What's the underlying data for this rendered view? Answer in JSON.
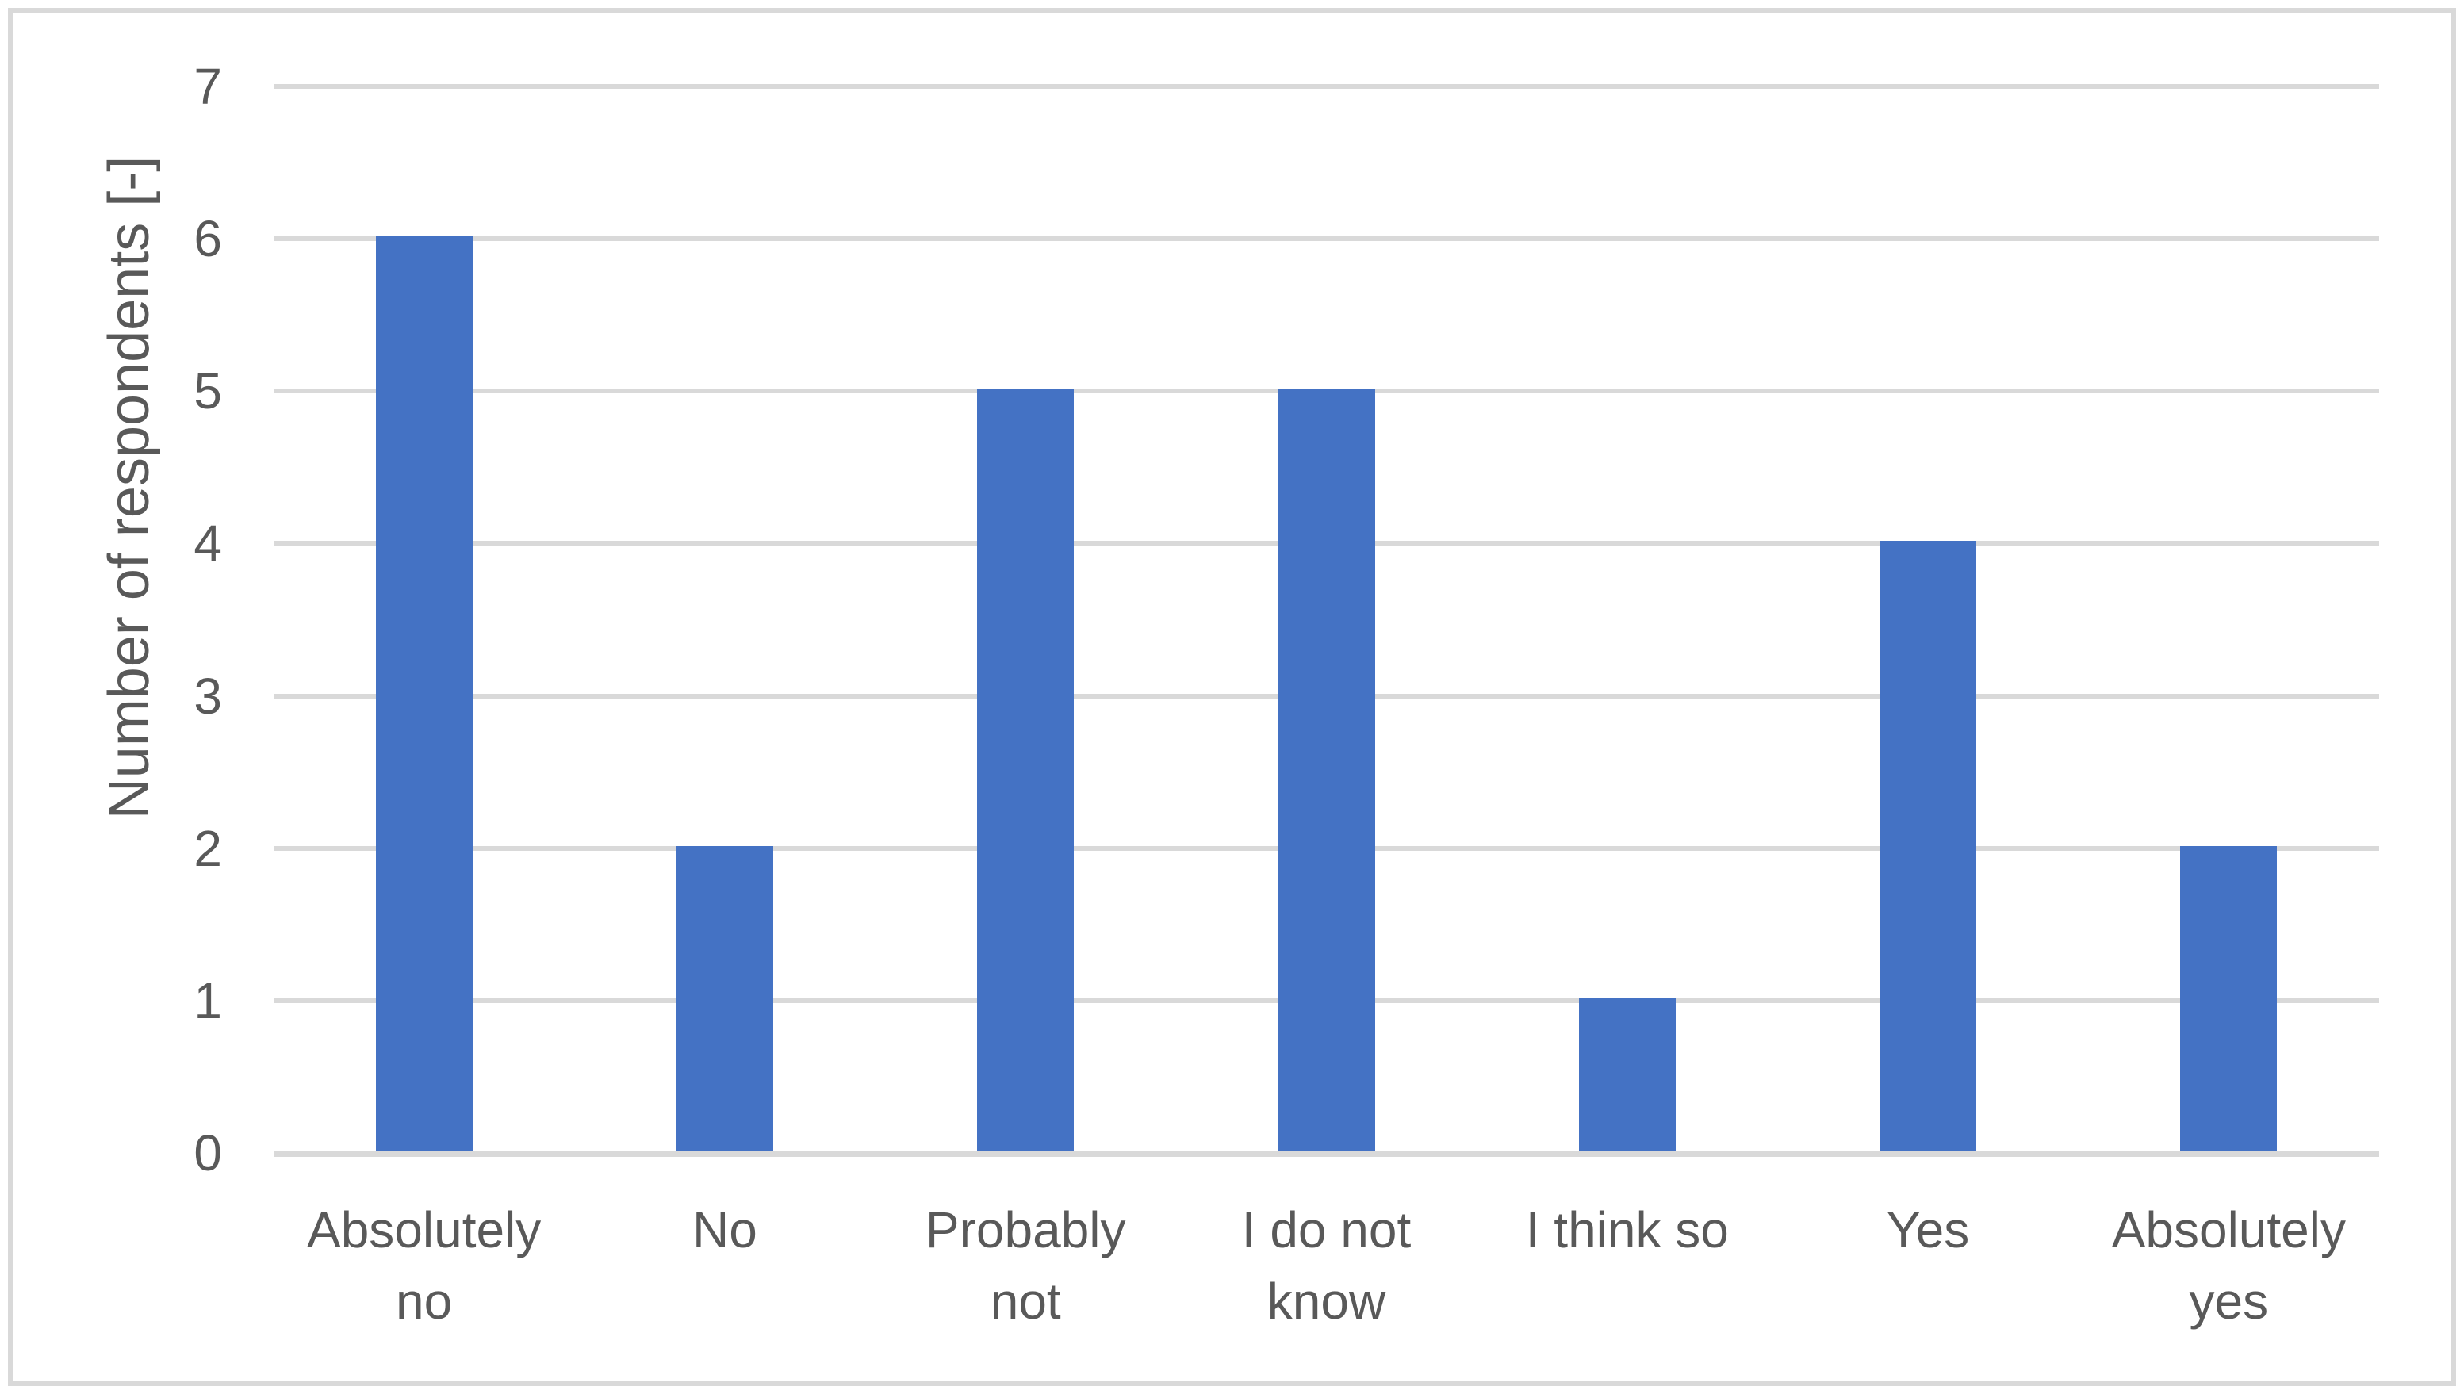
{
  "chart_data": {
    "type": "bar",
    "categories": [
      "Absolutely\nno",
      "No",
      "Probably\nnot",
      "I do not\nknow",
      "I think so",
      "Yes",
      "Absolutely\nyes"
    ],
    "values": [
      6,
      2,
      5,
      5,
      1,
      4,
      2
    ],
    "title": "",
    "xlabel": "",
    "ylabel": "Number of respondents [-]",
    "ylim": [
      0,
      7
    ],
    "yticks": [
      0,
      1,
      2,
      3,
      4,
      5,
      6,
      7
    ],
    "grid": "horizontal gridlines at each integer value",
    "legend_position": "none",
    "colors": {
      "bar": "#4472C4",
      "gridline": "#D9D9D9",
      "axis_line": "#D9D9D9",
      "text": "#595959",
      "border": "#D9D9D9",
      "background": "#FFFFFF"
    }
  }
}
